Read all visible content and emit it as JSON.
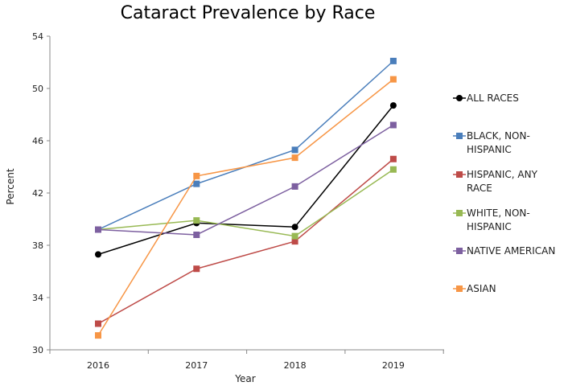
{
  "chart_data": {
    "type": "line",
    "title": "Cataract Prevalence by Race",
    "xlabel": "Year",
    "ylabel": "Percent",
    "categories": [
      "2016",
      "2017",
      "2018",
      "2019"
    ],
    "ylim": [
      30,
      54
    ],
    "yticks": [
      30,
      34,
      38,
      42,
      46,
      50,
      54
    ],
    "grid": false,
    "legend": "right",
    "series": [
      {
        "name": "ALL RACES",
        "lines": [
          "ALL RACES"
        ],
        "color": "#000000",
        "marker": "circle",
        "values": [
          37.3,
          39.7,
          39.4,
          48.7
        ]
      },
      {
        "name": "BLACK, NON-HISPANIC",
        "lines": [
          "BLACK, NON-",
          "HISPANIC"
        ],
        "color": "#4a7ebb",
        "marker": "square",
        "values": [
          39.2,
          42.7,
          45.3,
          52.1
        ]
      },
      {
        "name": "HISPANIC, ANY RACE",
        "lines": [
          "HISPANIC, ANY",
          "RACE"
        ],
        "color": "#be4b48",
        "marker": "square",
        "values": [
          32.0,
          36.2,
          38.3,
          44.6
        ]
      },
      {
        "name": "WHITE, NON-HISPANIC",
        "lines": [
          "WHITE, NON-",
          "HISPANIC"
        ],
        "color": "#98b954",
        "marker": "square",
        "values": [
          39.2,
          39.9,
          38.7,
          43.8
        ]
      },
      {
        "name": "NATIVE AMERICAN",
        "lines": [
          "NATIVE AMERICAN"
        ],
        "color": "#7d60a0",
        "marker": "square",
        "values": [
          39.2,
          38.8,
          42.5,
          47.2
        ]
      },
      {
        "name": "ASIAN",
        "lines": [
          "ASIAN"
        ],
        "color": "#f79646",
        "marker": "square",
        "values": [
          31.1,
          43.3,
          44.7,
          50.7
        ]
      }
    ]
  }
}
